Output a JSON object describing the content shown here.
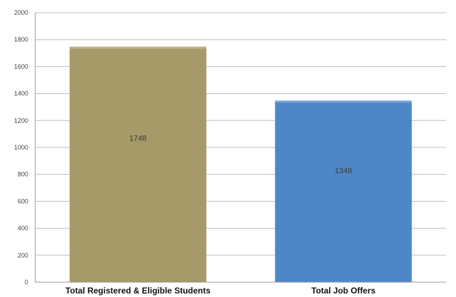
{
  "chart_data": {
    "type": "bar",
    "categories": [
      "Total Registered & Eligible Students",
      "Total Job Offers"
    ],
    "values": [
      1748,
      1348
    ],
    "data_labels": [
      "1748",
      "1348"
    ],
    "ylim": [
      0,
      2000
    ],
    "yticks": [
      0,
      200,
      400,
      600,
      800,
      1000,
      1200,
      1400,
      1600,
      1800,
      2000
    ],
    "grid": true,
    "legend": "none",
    "title": "",
    "xlabel": "",
    "ylabel": "",
    "colors": [
      "#a59a68",
      "#4f86c6"
    ]
  }
}
